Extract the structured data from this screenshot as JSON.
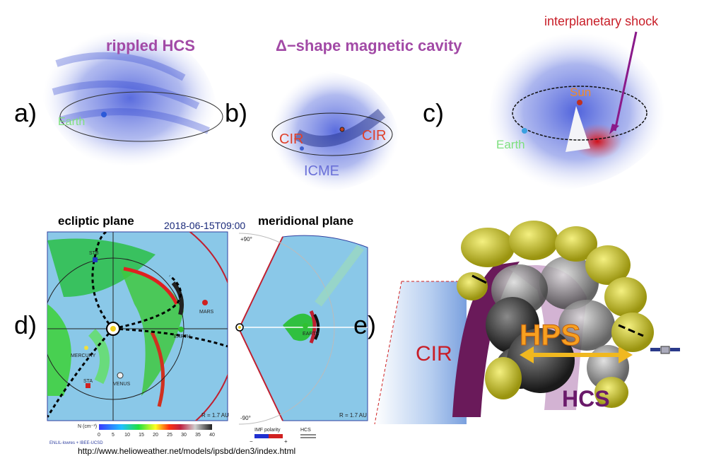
{
  "panels": {
    "a": {
      "label": "a)",
      "title": "rippled HCS",
      "annotations": [
        "Earth"
      ]
    },
    "b": {
      "label": "b)",
      "title": "Δ−shape magnetic cavity",
      "annotations": [
        "CIR",
        "CIR",
        "ICME"
      ]
    },
    "c": {
      "label": "c)",
      "title": "interplanetary shock",
      "annotations": [
        "Sun",
        "Earth"
      ]
    },
    "d": {
      "label": "d)",
      "ecliptic_title": "ecliptic plane",
      "meridional_title": "meridional plane",
      "timestamp": "2018-06-15T09:00",
      "planets": [
        "STB",
        "MARS",
        "MERCURY",
        "EARTH",
        "STA",
        "VENUS"
      ],
      "meridional_labels": [
        "+90°",
        "-90°",
        "EARTH"
      ],
      "radius_labels": [
        "R = 1.7 AU",
        "R = 1.7 AU"
      ],
      "colorbar": {
        "label": "N (cm⁻³)",
        "ticks": [
          "0",
          "5",
          "10",
          "15",
          "20",
          "25",
          "30",
          "35",
          "40"
        ]
      },
      "imf_legend": {
        "label": "IMF polarity",
        "minus": "−",
        "plus": "+"
      },
      "hcs_legend": "HCS",
      "credit": "ENLIL-lowres + IBEE-UCSD",
      "url": "http://www.helioweather.net/models/ipsbd/den3/index.html"
    },
    "e": {
      "label": "e)",
      "labels": [
        "CIR",
        "HPS",
        "HCS"
      ]
    }
  }
}
